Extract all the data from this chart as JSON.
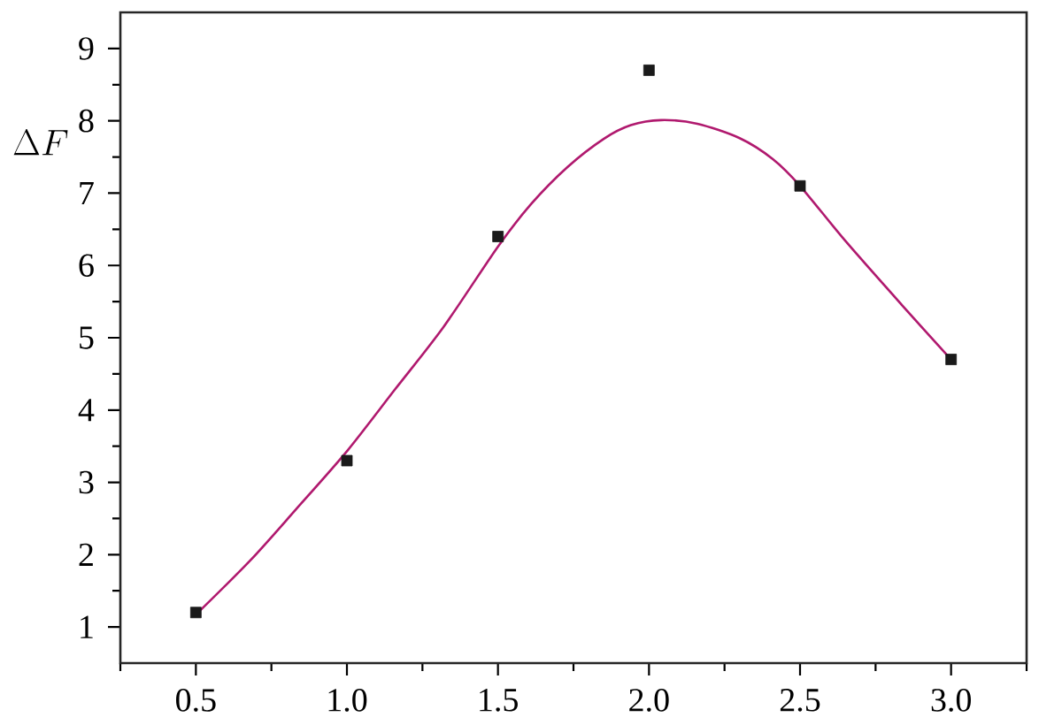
{
  "chart_data": {
    "type": "scatter",
    "ylabel": "\\Delta F",
    "xlim": [
      0.25,
      3.25
    ],
    "ylim": [
      0.5,
      9.5
    ],
    "xticks": [
      {
        "value": 0.25,
        "label": null
      },
      {
        "value": 0.5,
        "label": "0.5"
      },
      {
        "value": 0.75,
        "label": null
      },
      {
        "value": 1,
        "label": "1.0"
      },
      {
        "value": 1.25,
        "label": null
      },
      {
        "value": 1.5,
        "label": "1.5"
      },
      {
        "value": 1.75,
        "label": null
      },
      {
        "value": 2,
        "label": "2.0"
      },
      {
        "value": 2.25,
        "label": null
      },
      {
        "value": 2.5,
        "label": "2.5"
      },
      {
        "value": 2.75,
        "label": null
      },
      {
        "value": 3,
        "label": "3.0"
      },
      {
        "value": 3.25,
        "label": null
      }
    ],
    "yticks": [
      1,
      {
        "value": 1.5,
        "label": null
      },
      2,
      {
        "value": 2.5,
        "label": null
      },
      3,
      {
        "value": 3.5,
        "label": null
      },
      4,
      {
        "value": 4.5,
        "label": null
      },
      5,
      {
        "value": 5.5,
        "label": null
      },
      6,
      {
        "value": 6.5,
        "label": null
      },
      7,
      {
        "value": 7.5,
        "label": null
      },
      8,
      {
        "value": 8.5,
        "label": null
      },
      9
    ],
    "series": [
      {
        "color": "#1a1a1a",
        "marker": "square",
        "x": [
          0.5,
          1.0,
          1.5,
          2.0,
          2.5,
          3.0
        ],
        "values": [
          1.2,
          3.3,
          6.4,
          8.7,
          7.1,
          4.7
        ]
      },
      {
        "type": "line",
        "color": "#b0196e",
        "marker": "none",
        "x": [
          0.5,
          0.68,
          0.83,
          1.0,
          1.16,
          1.32,
          1.5,
          1.61,
          1.73,
          1.85,
          1.94,
          2.04,
          2.16,
          2.3,
          2.41,
          2.5,
          2.65,
          2.84,
          3.0
        ],
        "values": [
          1.17,
          1.92,
          2.62,
          3.43,
          4.29,
          5.15,
          6.26,
          6.85,
          7.36,
          7.75,
          7.94,
          8.01,
          7.96,
          7.76,
          7.47,
          7.1,
          6.34,
          5.44,
          4.7
        ]
      }
    ]
  }
}
